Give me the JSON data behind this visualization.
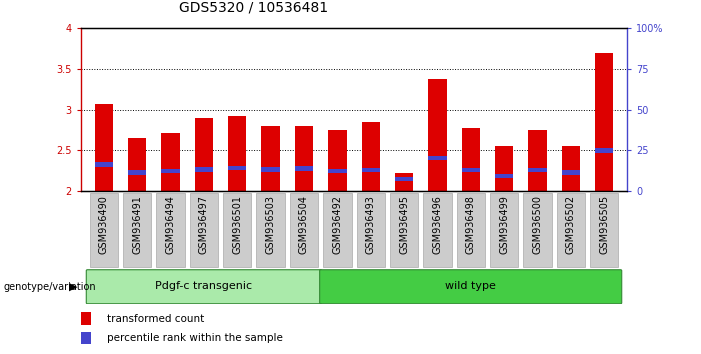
{
  "title": "GDS5320 / 10536481",
  "samples": [
    "GSM936490",
    "GSM936491",
    "GSM936494",
    "GSM936497",
    "GSM936501",
    "GSM936503",
    "GSM936504",
    "GSM936492",
    "GSM936493",
    "GSM936495",
    "GSM936496",
    "GSM936498",
    "GSM936499",
    "GSM936500",
    "GSM936502",
    "GSM936505"
  ],
  "transformed_count": [
    3.07,
    2.65,
    2.72,
    2.9,
    2.92,
    2.8,
    2.8,
    2.75,
    2.85,
    2.22,
    3.38,
    2.77,
    2.55,
    2.75,
    2.56,
    3.7
  ],
  "percentile_pos": [
    2.3,
    2.2,
    2.22,
    2.24,
    2.26,
    2.24,
    2.25,
    2.22,
    2.23,
    2.12,
    2.38,
    2.23,
    2.16,
    2.23,
    2.2,
    2.47
  ],
  "percentile_height": [
    0.055,
    0.055,
    0.055,
    0.055,
    0.055,
    0.055,
    0.055,
    0.055,
    0.055,
    0.055,
    0.055,
    0.055,
    0.055,
    0.055,
    0.055,
    0.055
  ],
  "ymin": 2.0,
  "ymax": 4.0,
  "yticks": [
    2.0,
    2.5,
    3.0,
    3.5,
    4.0
  ],
  "ytick_labels": [
    "2",
    "2.5",
    "3",
    "3.5",
    "4"
  ],
  "right_yticks": [
    0,
    25,
    50,
    75,
    100
  ],
  "right_ytick_labels": [
    "0",
    "25",
    "50",
    "75",
    "100%"
  ],
  "bar_color": "#dd0000",
  "percentile_color": "#4444cc",
  "bar_width": 0.55,
  "groups": [
    {
      "label": "Pdgf-c transgenic",
      "start": 0,
      "end": 7,
      "color": "#aaeaaa"
    },
    {
      "label": "wild type",
      "start": 7,
      "end": 16,
      "color": "#44cc44"
    }
  ],
  "group_label_prefix": "genotype/variation",
  "legend_items": [
    {
      "label": "transformed count",
      "color": "#dd0000"
    },
    {
      "label": "percentile rank within the sample",
      "color": "#4444cc"
    }
  ],
  "title_fontsize": 10,
  "tick_fontsize": 7,
  "axis_color_left": "#cc0000",
  "axis_color_right": "#4444cc",
  "background_color": "#ffffff",
  "plot_bg_color": "#ffffff",
  "grid_color": "#000000",
  "xtick_bg_color": "#cccccc"
}
